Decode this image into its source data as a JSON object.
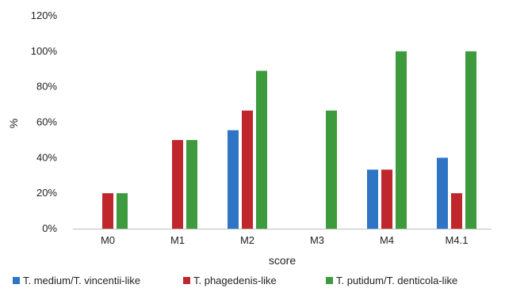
{
  "chart_data": {
    "type": "bar",
    "categories": [
      "M0",
      "M1",
      "M2",
      "M3",
      "M4",
      "M4.1"
    ],
    "series": [
      {
        "name": "T. medium/T. vincentii-like",
        "color": "#2e75c6",
        "values": [
          0,
          0,
          55.5,
          0,
          33.3,
          40
        ]
      },
      {
        "name": "T. phagedenis-like",
        "color": "#c0272d",
        "values": [
          20,
          50,
          66.6,
          0,
          33.3,
          20
        ]
      },
      {
        "name": "T. putidum/T. denticola-like",
        "color": "#3d9a3d",
        "values": [
          20,
          50,
          89,
          66.6,
          100,
          100
        ]
      }
    ],
    "ylim": [
      0,
      120
    ],
    "yticks": [
      "0%",
      "20%",
      "40%",
      "60%",
      "80%",
      "100%",
      "120%"
    ],
    "ytick_values": [
      0,
      20,
      40,
      60,
      80,
      100,
      120
    ],
    "xlabel": "score",
    "ylabel": "%",
    "grid": false,
    "legend_position": "bottom"
  }
}
